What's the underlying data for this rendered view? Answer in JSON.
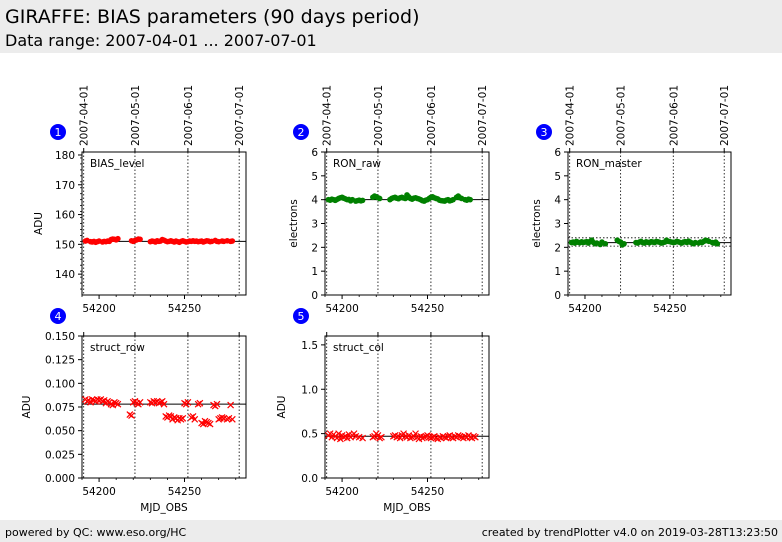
{
  "header": {
    "title": "GIRAFFE: BIAS parameters (90 days period)",
    "subtitle": "Data range: 2007-04-01 ... 2007-07-01"
  },
  "footer": {
    "left": "powered by QC: www.eso.org/HC",
    "right": "created by trendPlotter v4.0 on 2019-03-28T13:23:50"
  },
  "colors": {
    "red": "#ff0000",
    "green": "#008000",
    "badge": "#0000ff"
  },
  "chart_data": [
    {
      "id": 1,
      "type": "scatter",
      "title": "BIAS_level",
      "ylabel": "ADU",
      "xlabel": "",
      "xlim": [
        54190,
        54286
      ],
      "ylim": [
        133,
        181
      ],
      "yticks": [
        140,
        150,
        160,
        170,
        180
      ],
      "xticks": [
        54200,
        54250
      ],
      "date_ticks": [
        {
          "mjd": 54191,
          "label": "2007-04-01"
        },
        {
          "mjd": 54221,
          "label": "2007-05-01"
        },
        {
          "mjd": 54252,
          "label": "2007-06-01"
        },
        {
          "mjd": 54282,
          "label": "2007-07-01"
        }
      ],
      "ref_lines": [
        151
      ],
      "marker": "circle",
      "color": "#ff0000",
      "x": [
        54192,
        54193,
        54195,
        54196,
        54197,
        54198,
        54199,
        54200,
        54202,
        54203,
        54204,
        54205,
        54206,
        54207,
        54208,
        54209,
        54210,
        54211,
        54219,
        54220,
        54221,
        54222,
        54223,
        54224,
        54230,
        54231,
        54232,
        54233,
        54234,
        54235,
        54236,
        54237,
        54238,
        54239,
        54240,
        54241,
        54242,
        54243,
        54244,
        54245,
        54246,
        54247,
        54248,
        54249,
        54250,
        54251,
        54252,
        54253,
        54254,
        54255,
        54256,
        54257,
        54258,
        54259,
        54260,
        54261,
        54262,
        54263,
        54264,
        54265,
        54266,
        54268,
        54269,
        54270,
        54272,
        54273,
        54275,
        54277,
        54278
      ],
      "y": [
        151.1,
        151.3,
        150.9,
        150.8,
        151.0,
        150.7,
        150.9,
        151.1,
        150.8,
        151.0,
        150.9,
        151.1,
        151.0,
        151.6,
        151.8,
        151.7,
        151.5,
        151.9,
        151.2,
        151.0,
        151.3,
        151.5,
        151.8,
        151.7,
        150.9,
        151.1,
        151.0,
        150.8,
        151.2,
        151.0,
        151.1,
        151.6,
        151.4,
        151.1,
        150.9,
        151.0,
        151.2,
        151.0,
        150.8,
        151.1,
        150.9,
        150.7,
        151.0,
        151.2,
        151.0,
        150.8,
        150.9,
        151.1,
        151.0,
        151.2,
        151.0,
        151.1,
        150.9,
        151.0,
        151.1,
        150.8,
        151.0,
        151.2,
        151.1,
        150.9,
        151.0,
        151.3,
        151.0,
        150.9,
        151.1,
        151.0,
        151.2,
        151.0,
        151.1
      ]
    },
    {
      "id": 2,
      "type": "scatter",
      "title": "RON_raw",
      "ylabel": "electrons",
      "xlabel": "",
      "xlim": [
        54190,
        54286
      ],
      "ylim": [
        0,
        6
      ],
      "yticks": [
        0,
        1,
        2,
        3,
        4,
        5,
        6
      ],
      "xticks": [
        54200,
        54250
      ],
      "date_ticks": [
        {
          "mjd": 54191,
          "label": "2007-04-01"
        },
        {
          "mjd": 54221,
          "label": "2007-05-01"
        },
        {
          "mjd": 54252,
          "label": "2007-06-01"
        },
        {
          "mjd": 54282,
          "label": "2007-07-01"
        }
      ],
      "ref_lines": [
        4.0
      ],
      "marker": "circle",
      "color": "#008000",
      "x": [
        54192,
        54193,
        54194,
        54195,
        54196,
        54197,
        54198,
        54199,
        54200,
        54201,
        54202,
        54203,
        54204,
        54205,
        54206,
        54208,
        54209,
        54210,
        54211,
        54212,
        54218,
        54219,
        54220,
        54221,
        54222,
        54228,
        54229,
        54230,
        54231,
        54232,
        54233,
        54234,
        54235,
        54236,
        54237,
        54238,
        54239,
        54240,
        54241,
        54242,
        54243,
        54244,
        54245,
        54246,
        54247,
        54248,
        54249,
        54250,
        54251,
        54252,
        54253,
        54254,
        54255,
        54256,
        54257,
        54258,
        54259,
        54260,
        54261,
        54262,
        54263,
        54264,
        54265,
        54267,
        54268,
        54269,
        54270,
        54272,
        54273,
        54274,
        54275
      ],
      "y": [
        4.0,
        3.98,
        4.02,
        4.0,
        3.97,
        4.01,
        4.05,
        4.08,
        4.1,
        4.06,
        4.03,
        4.0,
        4.01,
        3.95,
        4.0,
        3.94,
        3.96,
        3.98,
        3.95,
        3.97,
        4.1,
        4.15,
        4.12,
        4.08,
        4.05,
        4.0,
        4.05,
        4.08,
        4.1,
        4.06,
        4.04,
        4.08,
        4.1,
        4.07,
        4.05,
        4.2,
        4.12,
        4.05,
        4.02,
        4.06,
        4.08,
        4.05,
        4.03,
        4.0,
        3.96,
        3.94,
        3.98,
        4.0,
        4.05,
        4.1,
        4.12,
        4.08,
        4.05,
        4.03,
        3.98,
        3.96,
        3.95,
        3.94,
        3.98,
        4.0,
        3.95,
        3.97,
        4.0,
        4.1,
        4.15,
        4.08,
        4.05,
        4.0,
        3.98,
        4.02,
        4.0
      ]
    },
    {
      "id": 3,
      "type": "scatter",
      "title": "RON_master",
      "ylabel": "electrons",
      "xlabel": "",
      "xlim": [
        54190,
        54286
      ],
      "ylim": [
        0,
        6
      ],
      "yticks": [
        0,
        1,
        2,
        3,
        4,
        5,
        6
      ],
      "xticks": [
        54200,
        54250
      ],
      "date_ticks": [
        {
          "mjd": 54191,
          "label": "2007-04-01"
        },
        {
          "mjd": 54221,
          "label": "2007-05-01"
        },
        {
          "mjd": 54252,
          "label": "2007-06-01"
        },
        {
          "mjd": 54282,
          "label": "2007-07-01"
        }
      ],
      "ref_lines": [
        2.2
      ],
      "dotted_lines": [
        2.05,
        2.4
      ],
      "marker": "circle",
      "color": "#008000",
      "x": [
        54192,
        54193,
        54194,
        54195,
        54196,
        54197,
        54198,
        54199,
        54200,
        54201,
        54202,
        54203,
        54204,
        54205,
        54206,
        54207,
        54209,
        54210,
        54212,
        54219,
        54220,
        54221,
        54222,
        54223,
        54230,
        54231,
        54232,
        54233,
        54234,
        54235,
        54236,
        54237,
        54238,
        54239,
        54240,
        54241,
        54242,
        54243,
        54244,
        54245,
        54246,
        54247,
        54248,
        54249,
        54250,
        54251,
        54252,
        54253,
        54254,
        54255,
        54256,
        54257,
        54258,
        54259,
        54260,
        54261,
        54262,
        54263,
        54264,
        54265,
        54267,
        54268,
        54269,
        54270,
        54271,
        54272,
        54273,
        54275,
        54276,
        54277,
        54278
      ],
      "y": [
        2.2,
        2.22,
        2.18,
        2.25,
        2.21,
        2.19,
        2.23,
        2.2,
        2.22,
        2.24,
        2.18,
        2.25,
        2.3,
        2.2,
        2.15,
        2.18,
        2.12,
        2.22,
        2.15,
        2.3,
        2.25,
        2.22,
        2.1,
        2.15,
        2.2,
        2.18,
        2.22,
        2.25,
        2.2,
        2.18,
        2.23,
        2.21,
        2.19,
        2.24,
        2.22,
        2.2,
        2.25,
        2.23,
        2.21,
        2.18,
        2.2,
        2.22,
        2.3,
        2.25,
        2.24,
        2.22,
        2.2,
        2.21,
        2.25,
        2.23,
        2.2,
        2.18,
        2.22,
        2.24,
        2.2,
        2.26,
        2.22,
        2.18,
        2.15,
        2.2,
        2.18,
        2.22,
        2.2,
        2.25,
        2.3,
        2.28,
        2.25,
        2.2,
        2.18,
        2.22,
        2.15
      ]
    },
    {
      "id": 4,
      "type": "scatter",
      "title": "struct_row",
      "ylabel": "ADU",
      "xlabel": "MJD_OBS",
      "xlim": [
        54190,
        54286
      ],
      "ylim": [
        0,
        0.15
      ],
      "yticks": [
        0.0,
        0.025,
        0.05,
        0.075,
        0.1,
        0.125,
        0.15
      ],
      "ytick_labels": [
        "0.000",
        "0.025",
        "0.050",
        "0.075",
        "0.100",
        "0.125",
        "0.150"
      ],
      "xticks": [
        54200,
        54250
      ],
      "date_ticks": [
        {
          "mjd": 54191,
          "label": "2007-04-01"
        },
        {
          "mjd": 54221,
          "label": "2007-05-01"
        },
        {
          "mjd": 54252,
          "label": "2007-06-01"
        },
        {
          "mjd": 54282,
          "label": "2007-07-01"
        }
      ],
      "ref_lines": [
        0.078
      ],
      "marker": "x",
      "color": "#ff0000",
      "x": [
        54192,
        54193,
        54194,
        54195,
        54196,
        54197,
        54198,
        54199,
        54200,
        54201,
        54202,
        54203,
        54204,
        54205,
        54206,
        54207,
        54208,
        54209,
        54210,
        54211,
        54218,
        54219,
        54220,
        54221,
        54222,
        54223,
        54224,
        54230,
        54231,
        54232,
        54233,
        54234,
        54235,
        54236,
        54237,
        54238,
        54239,
        54240,
        54241,
        54242,
        54243,
        54244,
        54245,
        54246,
        54247,
        54248,
        54249,
        54250,
        54251,
        54252,
        54254,
        54255,
        54256,
        54258,
        54259,
        54260,
        54261,
        54262,
        54263,
        54264,
        54265,
        54267,
        54268,
        54269,
        54270,
        54271,
        54272,
        54273,
        54275,
        54276,
        54277,
        54278
      ],
      "y": [
        0.083,
        0.081,
        0.082,
        0.08,
        0.083,
        0.082,
        0.081,
        0.083,
        0.082,
        0.083,
        0.081,
        0.082,
        0.079,
        0.081,
        0.08,
        0.078,
        0.077,
        0.08,
        0.079,
        0.078,
        0.067,
        0.066,
        0.08,
        0.081,
        0.079,
        0.078,
        0.08,
        0.08,
        0.079,
        0.081,
        0.08,
        0.081,
        0.079,
        0.08,
        0.081,
        0.078,
        0.065,
        0.064,
        0.066,
        0.065,
        0.062,
        0.064,
        0.063,
        0.061,
        0.063,
        0.062,
        0.063,
        0.079,
        0.078,
        0.08,
        0.064,
        0.065,
        0.062,
        0.078,
        0.079,
        0.058,
        0.057,
        0.06,
        0.059,
        0.058,
        0.057,
        0.077,
        0.076,
        0.078,
        0.062,
        0.063,
        0.064,
        0.063,
        0.062,
        0.063,
        0.077,
        0.062
      ]
    },
    {
      "id": 5,
      "type": "scatter",
      "title": "struct_col",
      "ylabel": "ADU",
      "xlabel": "MJD_OBS",
      "xlim": [
        54190,
        54286
      ],
      "ylim": [
        0,
        1.6
      ],
      "yticks": [
        0.0,
        0.5,
        1.0,
        1.5
      ],
      "ytick_labels": [
        "0.0",
        "0.5",
        "1.0",
        "1.5"
      ],
      "xticks": [
        54200,
        54250
      ],
      "date_ticks": [
        {
          "mjd": 54191,
          "label": "2007-04-01"
        },
        {
          "mjd": 54221,
          "label": "2007-05-01"
        },
        {
          "mjd": 54252,
          "label": "2007-06-01"
        },
        {
          "mjd": 54282,
          "label": "2007-07-01"
        }
      ],
      "ref_lines": [
        0.47
      ],
      "marker": "x",
      "color": "#ff0000",
      "x": [
        54192,
        54193,
        54194,
        54195,
        54196,
        54197,
        54198,
        54199,
        54200,
        54201,
        54202,
        54203,
        54204,
        54205,
        54206,
        54207,
        54208,
        54210,
        54212,
        54218,
        54219,
        54220,
        54221,
        54222,
        54223,
        54230,
        54231,
        54232,
        54233,
        54234,
        54235,
        54236,
        54237,
        54238,
        54239,
        54240,
        54241,
        54242,
        54243,
        54244,
        54245,
        54246,
        54247,
        54248,
        54249,
        54250,
        54251,
        54252,
        54253,
        54254,
        54255,
        54256,
        54257,
        54258,
        54259,
        54260,
        54261,
        54262,
        54263,
        54264,
        54265,
        54266,
        54267,
        54268,
        54269,
        54270,
        54271,
        54272,
        54273,
        54274,
        54275,
        54276,
        54277,
        54278
      ],
      "y": [
        0.48,
        0.5,
        0.46,
        0.49,
        0.47,
        0.45,
        0.5,
        0.44,
        0.48,
        0.46,
        0.47,
        0.45,
        0.49,
        0.46,
        0.48,
        0.5,
        0.47,
        0.46,
        0.45,
        0.46,
        0.47,
        0.5,
        0.48,
        0.45,
        0.46,
        0.47,
        0.48,
        0.46,
        0.47,
        0.45,
        0.48,
        0.5,
        0.47,
        0.46,
        0.48,
        0.45,
        0.46,
        0.47,
        0.5,
        0.46,
        0.44,
        0.47,
        0.45,
        0.46,
        0.47,
        0.48,
        0.46,
        0.45,
        0.46,
        0.47,
        0.45,
        0.44,
        0.46,
        0.45,
        0.47,
        0.46,
        0.45,
        0.47,
        0.48,
        0.46,
        0.45,
        0.47,
        0.46,
        0.48,
        0.47,
        0.46,
        0.45,
        0.47,
        0.46,
        0.48,
        0.46,
        0.45,
        0.47,
        0.46
      ]
    }
  ]
}
